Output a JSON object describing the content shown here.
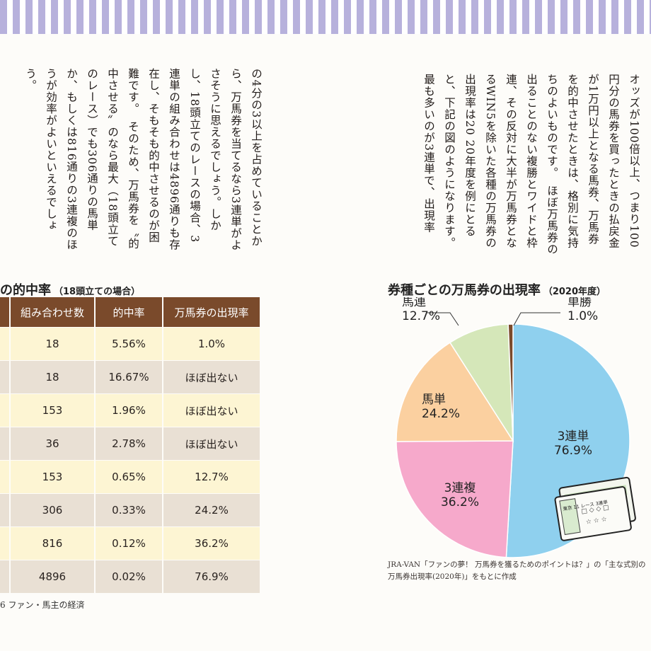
{
  "left_body_text": "の4分の3以上を占めていることから、万馬券を当てるなら3連単がよさそうに思えるでしょう。しかし、18頭立てのレースの場合、3連単の組み合わせは4896通りも存在し、そもそも的中させるのが困難です。　そのため、万馬券を〝的中させる〟のなら最大（18頭立てのレース）でも306通りの馬単か、もしくは816通りの3連複のほうが効率がよいといえるでしょう。",
  "right_body_text": "オッズが100倍以上、つまり100円分の馬券を買ったときの払戻金が1万円以上となる馬券、万馬券を的中させたときは、格別に気持ちのよいものです。　ほぼ万馬券の出ることのない複勝とワイドと枠連、その反対に大半が万馬券となるWIN5を除いた各種の万馬券の出現率は20 20年度を例にとると、下記の図のようになります。　最も多いのが3連単で、出現率",
  "table": {
    "title": "の的中率",
    "subtitle": "（18頭立ての場合）",
    "headers": [
      "組み合わせ数",
      "的中率",
      "万馬券の出現率"
    ],
    "rows": [
      [
        "18",
        "5.56%",
        "1.0%"
      ],
      [
        "18",
        "16.67%",
        "ほぼ出ない"
      ],
      [
        "153",
        "1.96%",
        "ほぼ出ない"
      ],
      [
        "36",
        "2.78%",
        "ほぼ出ない"
      ],
      [
        "153",
        "0.65%",
        "12.7%"
      ],
      [
        "306",
        "0.33%",
        "24.2%"
      ],
      [
        "816",
        "0.12%",
        "36.2%"
      ],
      [
        "4896",
        "0.02%",
        "76.9%"
      ]
    ]
  },
  "chart_heading": {
    "title": "券種ごとの万馬券の出現率",
    "subtitle": "（2020年度）"
  },
  "chart_data": {
    "type": "pie",
    "title": "券種ごとの万馬券の出現率（2020年度）",
    "slices": [
      {
        "name": "3連単",
        "value": 76.9,
        "label": "76.9%",
        "color": "#8fd0ee"
      },
      {
        "name": "3連複",
        "value": 36.2,
        "label": "36.2%",
        "color": "#f6a9cb"
      },
      {
        "name": "馬単",
        "value": 24.2,
        "label": "24.2%",
        "color": "#fbd0a0"
      },
      {
        "name": "馬連",
        "value": 12.7,
        "label": "12.7%",
        "color": "#d5e7b9"
      },
      {
        "name": "単勝",
        "value": 1.0,
        "label": "1.0%",
        "color": "#7a4a2b"
      }
    ]
  },
  "source_line1": "JRA-VAN「ファンの夢！ 万馬券を獲るためのポイントは？」の「主な式別の",
  "source_line2": "万馬券出現率(2020年)」をもとに作成",
  "footer": "6 ファン・馬主の経済",
  "ticket_text": "東京 11 レース 3連単"
}
